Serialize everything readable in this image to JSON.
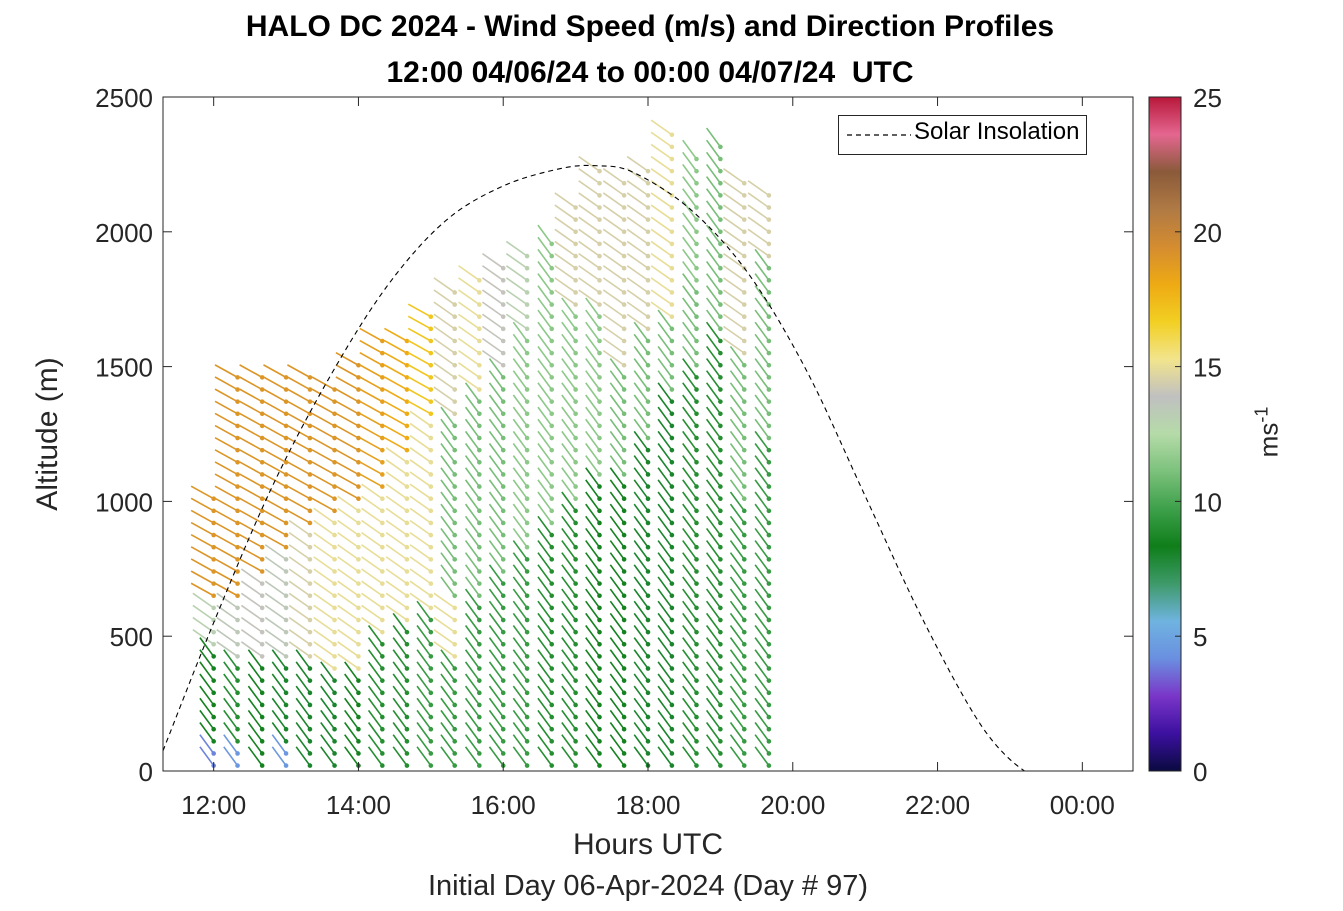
{
  "title_line1": "HALO DC 2024 - Wind Speed (m/s) and Direction Profiles",
  "title_line2": "12:00 04/06/24 to 00:00 04/07/24  UTC",
  "subcaption": "Initial Day 06-Apr-2024 (Day # 97)",
  "colorbar": {
    "label": "ms",
    "label_exponent": "-1",
    "ticks": [
      0,
      5,
      10,
      15,
      20,
      25
    ],
    "range": [
      0,
      25
    ],
    "colors": [
      "#0a0a40",
      "#3c10a0",
      "#7a36c8",
      "#6a8fe0",
      "#6fb3e0",
      "#3e9a6a",
      "#0f7e1a",
      "#3da04a",
      "#7cc17c",
      "#b5dba8",
      "#c0c0c0",
      "#f2e48c",
      "#f2cf22",
      "#eeaa14",
      "#d48c30",
      "#b07a44",
      "#8a5a3a",
      "#e46690",
      "#b8183a"
    ]
  },
  "legend": {
    "label": "Solar Insolation"
  },
  "chart_data": {
    "type": "wind barb profile",
    "title": "HALO DC 2024 - Wind Speed (m/s) and Direction Profiles",
    "subtitle": "12:00 04/06/24 to 00:00 04/07/24  UTC",
    "xlabel": "Hours UTC",
    "ylabel": "Altitude (m)",
    "xlim": [
      11.3,
      24.7
    ],
    "ylim": [
      0,
      2500
    ],
    "xticks": [
      12,
      14,
      16,
      18,
      20,
      22,
      24
    ],
    "xtick_labels": [
      "12:00",
      "14:00",
      "16:00",
      "18:00",
      "20:00",
      "22:00",
      "00:00"
    ],
    "yticks": [
      0,
      500,
      1000,
      1500,
      2000,
      2500
    ],
    "ytick_labels": [
      "0",
      "500",
      "1000",
      "1500",
      "2000",
      "2500"
    ],
    "grid": false,
    "legend_position": "top-right",
    "solar_insolation_curve": {
      "name": "Solar Insolation",
      "x": [
        11.3,
        12.0,
        12.8,
        13.6,
        14.4,
        15.2,
        16.0,
        16.8,
        17.3,
        17.8,
        18.6,
        19.4,
        20.2,
        21.0,
        21.8,
        22.6,
        23.2,
        23.5,
        24.7
      ],
      "y": [
        75,
        550,
        1050,
        1460,
        1800,
        2040,
        2170,
        2235,
        2245,
        2220,
        2080,
        1840,
        1480,
        1020,
        560,
        170,
        0,
        0,
        0
      ]
    },
    "profiles": [
      {
        "time": 12.0,
        "top": 1040,
        "bands": [
          [
            0,
            80,
            4
          ],
          [
            80,
            450,
            8.5
          ],
          [
            450,
            620,
            13
          ],
          [
            620,
            1040,
            19
          ]
        ]
      },
      {
        "time": 12.33,
        "top": 1480,
        "bands": [
          [
            0,
            80,
            4.5
          ],
          [
            80,
            420,
            9
          ],
          [
            420,
            650,
            13.5
          ],
          [
            650,
            1480,
            19
          ]
        ]
      },
      {
        "time": 12.67,
        "top": 1500,
        "bands": [
          [
            0,
            400,
            8.5
          ],
          [
            400,
            700,
            14
          ],
          [
            700,
            1500,
            19
          ]
        ]
      },
      {
        "time": 13.0,
        "top": 1500,
        "bands": [
          [
            0,
            80,
            4.5
          ],
          [
            80,
            420,
            8
          ],
          [
            420,
            800,
            13.5
          ],
          [
            800,
            1500,
            19
          ]
        ]
      },
      {
        "time": 13.33,
        "top": 1500,
        "bands": [
          [
            0,
            400,
            8
          ],
          [
            400,
            900,
            14.5
          ],
          [
            900,
            1500,
            19
          ]
        ]
      },
      {
        "time": 13.67,
        "top": 1420,
        "bands": [
          [
            0,
            380,
            8
          ],
          [
            380,
            950,
            15
          ],
          [
            950,
            1420,
            19
          ]
        ]
      },
      {
        "time": 14.0,
        "top": 1520,
        "bands": [
          [
            0,
            380,
            8.5
          ],
          [
            380,
            1000,
            15
          ],
          [
            1000,
            1520,
            19
          ]
        ]
      },
      {
        "time": 14.33,
        "top": 1620,
        "bands": [
          [
            0,
            500,
            9
          ],
          [
            500,
            1050,
            15
          ],
          [
            1050,
            1620,
            18.5
          ]
        ]
      },
      {
        "time": 14.67,
        "top": 1620,
        "bands": [
          [
            0,
            550,
            9
          ],
          [
            550,
            1150,
            15
          ],
          [
            1150,
            1620,
            18
          ]
        ]
      },
      {
        "time": 15.0,
        "top": 1720,
        "bands": [
          [
            0,
            600,
            9.5
          ],
          [
            600,
            1300,
            15
          ],
          [
            1300,
            1720,
            17
          ]
        ]
      },
      {
        "time": 15.33,
        "top": 1780,
        "bands": [
          [
            0,
            400,
            9.5
          ],
          [
            400,
            650,
            15
          ],
          [
            650,
            1300,
            11
          ],
          [
            1300,
            1780,
            14.5
          ]
        ]
      },
      {
        "time": 15.67,
        "top": 1850,
        "bands": [
          [
            0,
            650,
            9.5
          ],
          [
            650,
            1400,
            11
          ],
          [
            1400,
            1850,
            15
          ]
        ]
      },
      {
        "time": 16.0,
        "top": 1880,
        "bands": [
          [
            0,
            700,
            9.5
          ],
          [
            700,
            1500,
            11
          ],
          [
            1500,
            1880,
            14
          ]
        ]
      },
      {
        "time": 16.33,
        "top": 1930,
        "bands": [
          [
            0,
            800,
            9.5
          ],
          [
            800,
            1600,
            11.5
          ],
          [
            1600,
            1930,
            13
          ]
        ]
      },
      {
        "time": 16.67,
        "top": 1970,
        "bands": [
          [
            0,
            900,
            9
          ],
          [
            900,
            1970,
            11.5
          ]
        ]
      },
      {
        "time": 17.0,
        "top": 2100,
        "bands": [
          [
            0,
            1000,
            9
          ],
          [
            1000,
            1700,
            11.5
          ],
          [
            1700,
            2100,
            14.5
          ]
        ]
      },
      {
        "time": 17.33,
        "top": 2230,
        "bands": [
          [
            0,
            1100,
            8.5
          ],
          [
            1100,
            1700,
            11.5
          ],
          [
            1700,
            2230,
            14.5
          ]
        ]
      },
      {
        "time": 17.67,
        "top": 2200,
        "bands": [
          [
            0,
            1100,
            8.5
          ],
          [
            1100,
            1500,
            11
          ],
          [
            1500,
            2200,
            14.5
          ]
        ]
      },
      {
        "time": 18.0,
        "top": 2230,
        "bands": [
          [
            0,
            1200,
            8
          ],
          [
            1200,
            1600,
            11
          ],
          [
            1600,
            2230,
            14.5
          ]
        ]
      },
      {
        "time": 18.33,
        "top": 2400,
        "bands": [
          [
            0,
            1400,
            8
          ],
          [
            1400,
            1650,
            11
          ],
          [
            1650,
            2400,
            15
          ]
        ]
      },
      {
        "time": 18.67,
        "top": 2300,
        "bands": [
          [
            0,
            1500,
            9
          ],
          [
            1500,
            1800,
            11
          ],
          [
            1800,
            2300,
            11.5
          ]
        ]
      },
      {
        "time": 19.0,
        "top": 2350,
        "bands": [
          [
            0,
            1600,
            9
          ],
          [
            1600,
            1750,
            11
          ],
          [
            1750,
            2350,
            11
          ]
        ]
      },
      {
        "time": 19.33,
        "top": 2220,
        "bands": [
          [
            0,
            1000,
            9.5
          ],
          [
            1000,
            1550,
            11
          ],
          [
            1550,
            2220,
            14.5
          ]
        ]
      },
      {
        "time": 19.67,
        "top": 2170,
        "bands": [
          [
            0,
            1200,
            9.5
          ],
          [
            1200,
            1900,
            11
          ],
          [
            1900,
            2170,
            14.5
          ]
        ]
      }
    ]
  }
}
